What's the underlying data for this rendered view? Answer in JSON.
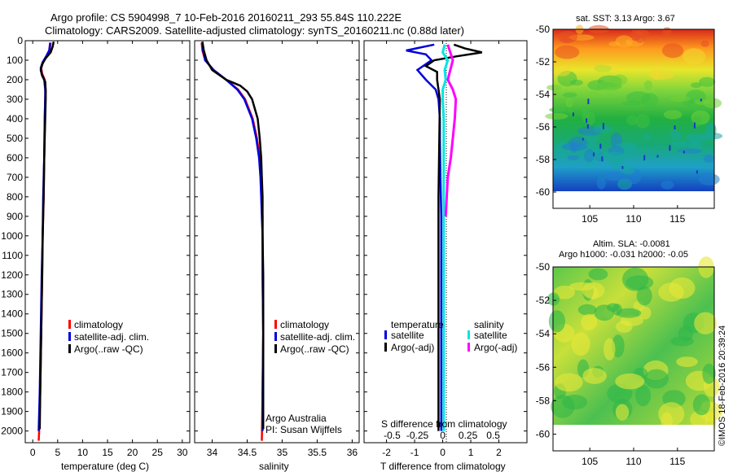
{
  "title_line1": "Argo profile: CS 5904998_7 10-Feb-2016 20160211_293 55.84S 110.222E",
  "title_line2": "Climatology: CARS2009. Satellite-adjusted climatology: synTS_20160211.nc (0.88d later)",
  "footer": {
    "credit": "©IMOS 18-Feb-2016 20:39:24",
    "argo_label": "Argo Australia",
    "pi_label": "PI: Susan Wijffels"
  },
  "colors": {
    "climatology": "#ff0000",
    "satellite": "#0000dd",
    "argo": "#000000",
    "sal_satellite": "#00e5e5",
    "sal_argo": "#ff00ff"
  },
  "chart_data": [
    {
      "type": "line",
      "id": "temperature",
      "xlabel": "temperature (deg C)",
      "xlim": [
        -1.5,
        31.5
      ],
      "ylim": [
        2060,
        0
      ],
      "xticks": [
        0,
        5,
        10,
        15,
        20,
        25,
        30
      ],
      "yticks": [
        0,
        100,
        200,
        300,
        400,
        500,
        600,
        700,
        800,
        900,
        1000,
        1100,
        1200,
        1300,
        1400,
        1500,
        1600,
        1700,
        1800,
        1900,
        2000
      ],
      "legend": [
        "climatology",
        "satellite-adj. clim.",
        "Argo(..raw -QC)"
      ],
      "legend_position": "lower-right",
      "series": [
        {
          "name": "climatology",
          "color": "#ff0000",
          "depth": [
            10,
            50,
            80,
            110,
            140,
            170,
            200,
            250,
            300,
            400,
            600,
            800,
            1000,
            1200,
            1500,
            1800,
            2000,
            2050
          ],
          "values": [
            3.6,
            3.4,
            2.8,
            2.1,
            1.7,
            1.9,
            2.4,
            2.6,
            2.5,
            2.4,
            2.3,
            2.2,
            2.0,
            1.9,
            1.7,
            1.5,
            1.3,
            1.2
          ]
        },
        {
          "name": "satellite-adj. clim.",
          "color": "#0000dd",
          "depth": [
            10,
            50,
            80,
            110,
            140,
            170,
            200,
            250,
            300,
            400,
            600,
            800,
            1000,
            1200,
            1500,
            1800,
            2000
          ],
          "values": [
            3.5,
            3.3,
            2.7,
            2.0,
            1.6,
            1.8,
            2.3,
            2.5,
            2.5,
            2.4,
            2.3,
            2.1,
            2.0,
            1.8,
            1.6,
            1.4,
            1.2
          ]
        },
        {
          "name": "Argo(..raw -QC)",
          "color": "#000000",
          "depth": [
            5,
            30,
            60,
            90,
            120,
            150,
            180,
            210,
            260,
            300,
            400,
            600,
            800,
            1000,
            1200,
            1500,
            1800,
            1990
          ],
          "values": [
            4.2,
            4.0,
            3.6,
            2.6,
            1.9,
            1.6,
            1.9,
            2.5,
            2.6,
            2.6,
            2.5,
            2.3,
            2.2,
            2.0,
            1.9,
            1.7,
            1.5,
            1.4
          ]
        }
      ]
    },
    {
      "type": "line",
      "id": "salinity",
      "xlabel": "salinity",
      "xlim": [
        33.75,
        36.1
      ],
      "ylim": [
        2060,
        0
      ],
      "xticks": [
        34,
        34.5,
        35,
        35.5,
        36
      ],
      "legend": [
        "climatology",
        "satellite-adj. clim.",
        "Argo(..raw -QC)"
      ],
      "legend_position": "lower-right",
      "series": [
        {
          "name": "climatology",
          "color": "#ff0000",
          "depth": [
            10,
            50,
            100,
            150,
            200,
            250,
            300,
            400,
            500,
            600,
            700,
            800,
            900,
            1000,
            1200,
            1500,
            1800,
            2050
          ],
          "values": [
            33.85,
            33.86,
            33.9,
            34.02,
            34.2,
            34.37,
            34.47,
            34.58,
            34.64,
            34.68,
            34.7,
            34.71,
            34.72,
            34.72,
            34.72,
            34.73,
            34.72,
            34.71
          ]
        },
        {
          "name": "satellite-adj. clim.",
          "color": "#0000dd",
          "depth": [
            10,
            50,
            100,
            150,
            200,
            250,
            300,
            400,
            500,
            600,
            700,
            800,
            900,
            1000,
            1200,
            1500,
            1800,
            2000
          ],
          "values": [
            33.86,
            33.87,
            33.9,
            34.02,
            34.2,
            34.36,
            34.46,
            34.57,
            34.63,
            34.67,
            34.69,
            34.7,
            34.71,
            34.72,
            34.72,
            34.73,
            34.72,
            34.72
          ]
        },
        {
          "name": "Argo(..raw -QC)",
          "color": "#000000",
          "depth": [
            5,
            50,
            100,
            150,
            200,
            230,
            260,
            300,
            400,
            500,
            600,
            700,
            800,
            900,
            1000,
            1200,
            1500,
            1800,
            1990
          ],
          "values": [
            33.86,
            33.88,
            33.92,
            34.0,
            34.2,
            34.4,
            34.5,
            34.57,
            34.65,
            34.68,
            34.7,
            34.71,
            34.72,
            34.72,
            34.72,
            34.73,
            34.73,
            34.73,
            34.73
          ]
        }
      ]
    },
    {
      "type": "line",
      "id": "difference",
      "xlabel": "T difference from climatology",
      "xlabel_top": "S difference from climatology",
      "xlim": [
        -2.8,
        3.0
      ],
      "ylim": [
        2060,
        0
      ],
      "xticks": [
        -2,
        -1,
        0,
        1,
        2
      ],
      "xticks_s": [
        -0.5,
        -0.25,
        0,
        0.25,
        0.5
      ],
      "legend_temperature_title": "temperature",
      "legend_salinity_title": "salinity",
      "legend_temperature": [
        "satellite",
        "Argo(-adj)"
      ],
      "legend_salinity": [
        "satellite",
        "Argo(-adj)"
      ],
      "series": [
        {
          "name": "T satellite",
          "color": "#0000dd",
          "depth": [
            20,
            50,
            70,
            100,
            150,
            200,
            250,
            300,
            400,
            500,
            700,
            900,
            1100,
            1400,
            1700,
            2000
          ],
          "values": [
            -0.3,
            -1.3,
            -0.6,
            -0.4,
            -0.9,
            -0.6,
            -0.25,
            -0.15,
            -0.1,
            -0.1,
            -0.08,
            -0.05,
            -0.05,
            -0.05,
            -0.05,
            -0.05
          ]
        },
        {
          "name": "T Argo(-adj)",
          "color": "#000000",
          "depth": [
            20,
            40,
            60,
            80,
            100,
            130,
            160,
            200,
            250,
            300,
            500,
            800,
            1100,
            1500,
            2000
          ],
          "values": [
            0.4,
            0.8,
            1.4,
            0.5,
            -0.3,
            -0.6,
            -0.2,
            -0.2,
            -0.15,
            -0.1,
            -0.12,
            -0.15,
            -0.15,
            -0.15,
            -0.15
          ]
        },
        {
          "name": "S satellite",
          "color": "#00e5e5",
          "depth": [
            20,
            60,
            100,
            150,
            200,
            250,
            300,
            400,
            600,
            800,
            1000,
            1400,
            1800,
            2000
          ],
          "values": [
            0.02,
            0.0,
            0.05,
            0.02,
            0.03,
            0.0,
            0.0,
            0.01,
            0.01,
            0.01,
            0.01,
            0.01,
            0.01,
            0.01
          ]
        },
        {
          "name": "S Argo(-adj)",
          "color": "#ff00ff",
          "depth": [
            20,
            100,
            200,
            250,
            300,
            400,
            500,
            600,
            700,
            800,
            900
          ],
          "values": [
            0.05,
            0.1,
            0.05,
            0.1,
            0.13,
            0.12,
            0.1,
            0.08,
            0.05,
            0.04,
            0.03
          ]
        }
      ]
    },
    {
      "type": "heatmap",
      "id": "sst_map",
      "title": "sat. SST: 3.13  Argo: 3.67",
      "xticks": [
        105,
        110,
        115
      ],
      "yticks": [
        -50,
        -52,
        -54,
        -56,
        -58,
        -60
      ],
      "xlim": [
        100.8,
        119.2
      ],
      "ylim": [
        -61.0,
        -50.0
      ]
    },
    {
      "type": "heatmap",
      "id": "sla_map",
      "title": "Altim. SLA: -0.0081",
      "subtitle": "Argo h1000: -0.031  h2000: -0.05",
      "xticks": [
        105,
        110,
        115
      ],
      "yticks": [
        -50,
        -52,
        -54,
        -56,
        -58,
        -60
      ],
      "xlim": [
        100.8,
        119.2
      ],
      "ylim": [
        -61.0,
        -50.0
      ]
    }
  ]
}
